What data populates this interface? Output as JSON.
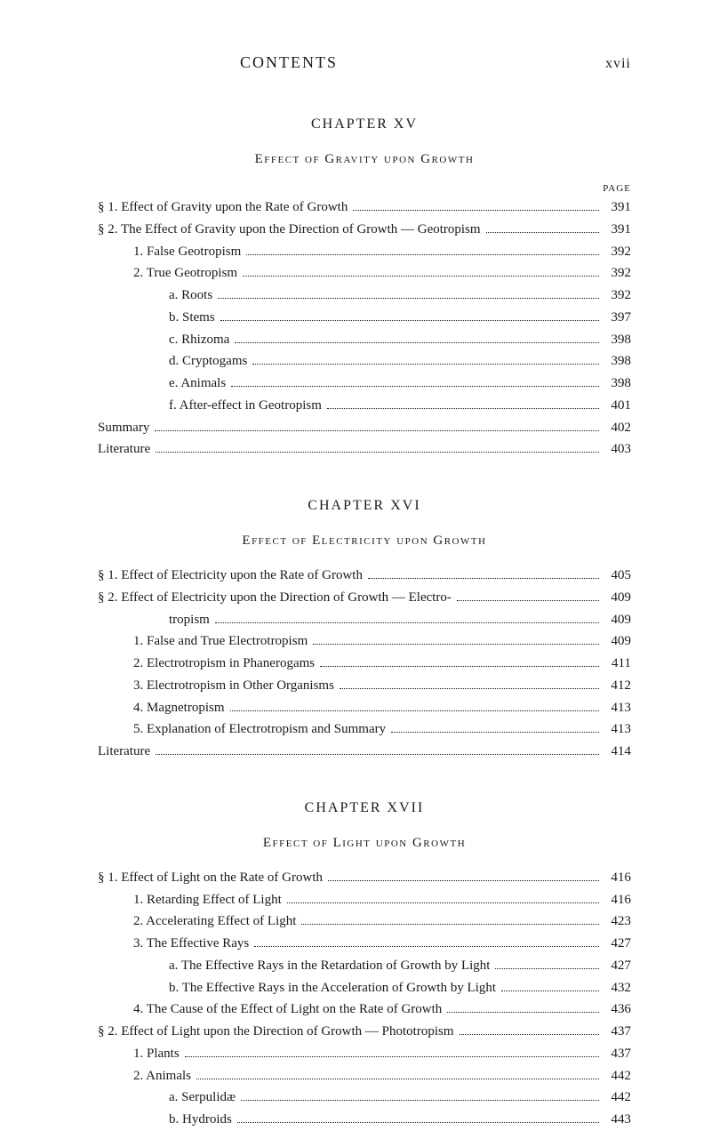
{
  "header": {
    "title": "CONTENTS",
    "page_number": "xvii"
  },
  "page_label": "PAGE",
  "chapters": [
    {
      "title": "CHAPTER XV",
      "subtitle": "Effect of Gravity upon Growth",
      "entries": [
        {
          "indent": 0,
          "label": "§ 1.  Effect of Gravity upon the Rate of Growth",
          "page": "391"
        },
        {
          "indent": 0,
          "label": "§ 2.  The Effect of Gravity upon the Direction of Growth — Geotropism",
          "page": "391"
        },
        {
          "indent": 1,
          "label": "1.  False Geotropism",
          "page": "392"
        },
        {
          "indent": 1,
          "label": "2.  True Geotropism",
          "page": "392"
        },
        {
          "indent": 2,
          "label": "a.  Roots",
          "page": "392"
        },
        {
          "indent": 2,
          "label": "b.  Stems",
          "page": "397"
        },
        {
          "indent": 2,
          "label": "c.  Rhizoma",
          "page": "398"
        },
        {
          "indent": 2,
          "label": "d.  Cryptogams",
          "page": "398"
        },
        {
          "indent": 2,
          "label": "e.  Animals",
          "page": "398"
        },
        {
          "indent": 2,
          "label": "f.  After-effect in Geotropism",
          "page": "401"
        },
        {
          "indent": 0,
          "label": "Summary",
          "page": "402"
        },
        {
          "indent": 0,
          "label": "Literature",
          "page": "403"
        }
      ]
    },
    {
      "title": "CHAPTER XVI",
      "subtitle": "Effect of Electricity upon Growth",
      "entries": [
        {
          "indent": 0,
          "label": "§ 1.  Effect of Electricity upon the Rate of Growth",
          "page": "405"
        },
        {
          "indent": 0,
          "label": "§ 2.  Effect of Electricity upon the Direction of Growth — Electro-",
          "page": "409"
        },
        {
          "indent": 2,
          "label": "tropism",
          "page": "409"
        },
        {
          "indent": 1,
          "label": "1.  False and True Electrotropism",
          "page": "409"
        },
        {
          "indent": 1,
          "label": "2.  Electrotropism in Phanerogams",
          "page": "411"
        },
        {
          "indent": 1,
          "label": "3.  Electrotropism in Other Organisms",
          "page": "412"
        },
        {
          "indent": 1,
          "label": "4.  Magnetropism",
          "page": "413"
        },
        {
          "indent": 1,
          "label": "5.  Explanation of Electrotropism and Summary",
          "page": "413"
        },
        {
          "indent": 0,
          "label": "Literature",
          "page": "414"
        }
      ]
    },
    {
      "title": "CHAPTER XVII",
      "subtitle": "Effect of Light upon Growth",
      "entries": [
        {
          "indent": 0,
          "label": "§ 1.  Effect of Light on the Rate of Growth",
          "page": "416"
        },
        {
          "indent": 1,
          "label": "1.  Retarding Effect of Light",
          "page": "416"
        },
        {
          "indent": 1,
          "label": "2.  Accelerating Effect of Light",
          "page": "423"
        },
        {
          "indent": 1,
          "label": "3.  The Effective Rays",
          "page": "427"
        },
        {
          "indent": 2,
          "label": "a.  The Effective Rays in the Retardation of Growth by Light",
          "page": "427"
        },
        {
          "indent": 2,
          "label": "b.  The Effective Rays in the Acceleration of Growth by Light",
          "page": "432"
        },
        {
          "indent": 1,
          "label": "4.  The Cause of the Effect of Light on the Rate of Growth",
          "page": "436"
        },
        {
          "indent": 0,
          "label": "§ 2.  Effect of Light upon the Direction of Growth — Phototropism",
          "page": "437"
        },
        {
          "indent": 1,
          "label": "1.  Plants",
          "page": "437"
        },
        {
          "indent": 1,
          "label": "2.  Animals",
          "page": "442"
        },
        {
          "indent": 2,
          "label": "a.  Serpulidæ",
          "page": "442"
        },
        {
          "indent": 2,
          "label": "b.  Hydroids",
          "page": "443"
        }
      ]
    }
  ]
}
